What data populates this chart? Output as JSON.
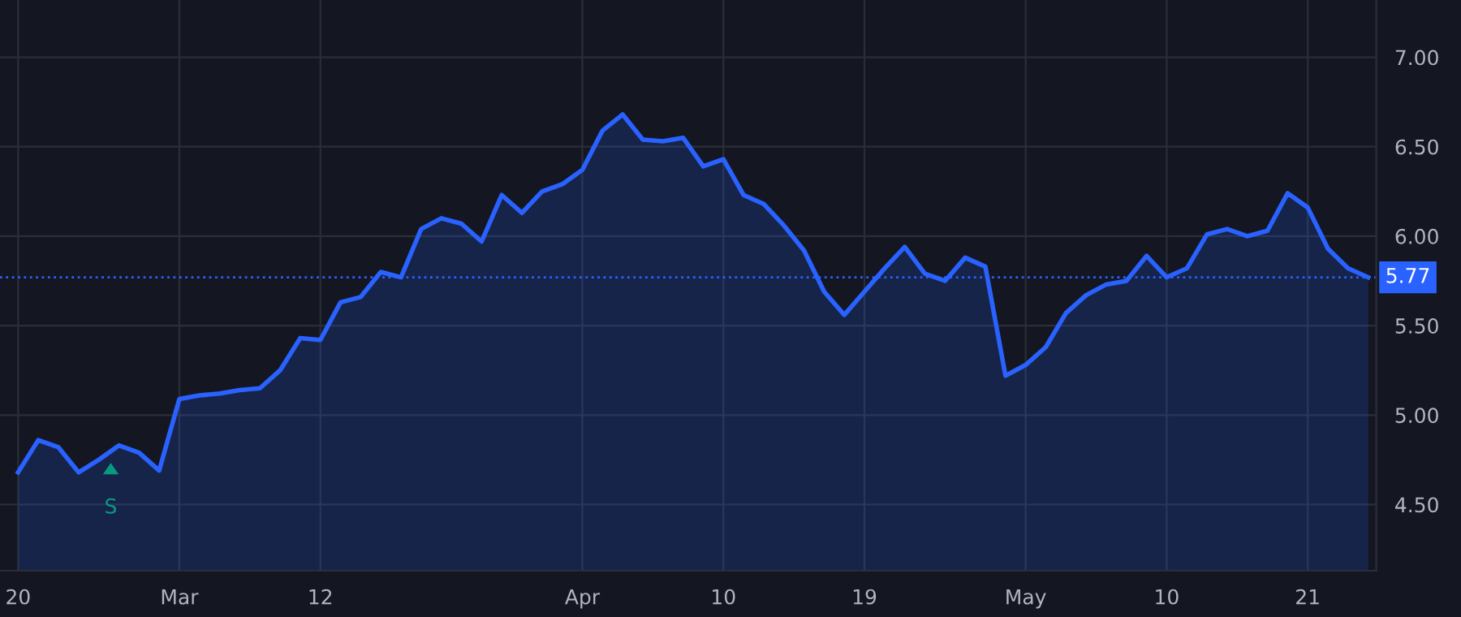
{
  "chart_data": {
    "type": "area",
    "categories": [
      "20",
      null,
      null,
      null,
      null,
      null,
      null,
      null,
      "Mar",
      null,
      null,
      null,
      null,
      null,
      null,
      "12",
      null,
      null,
      null,
      null,
      null,
      null,
      null,
      null,
      null,
      null,
      null,
      null,
      "Apr",
      null,
      null,
      null,
      null,
      null,
      null,
      "10",
      null,
      null,
      null,
      null,
      null,
      null,
      "19",
      null,
      null,
      null,
      null,
      null,
      null,
      null,
      "May",
      null,
      null,
      null,
      null,
      null,
      null,
      "10",
      null,
      null,
      null,
      null,
      null,
      null,
      "21",
      null,
      null,
      null
    ],
    "series": [
      {
        "color": "#2962ff",
        "values": [
          4.68,
          4.86,
          4.82,
          4.68,
          4.75,
          4.83,
          4.79,
          4.69,
          5.09,
          5.11,
          5.12,
          5.14,
          5.15,
          5.25,
          5.43,
          5.42,
          5.63,
          5.66,
          5.8,
          5.77,
          6.04,
          6.1,
          6.07,
          5.97,
          6.23,
          6.13,
          6.25,
          6.29,
          6.37,
          6.59,
          6.68,
          6.54,
          6.53,
          6.55,
          6.39,
          6.43,
          6.23,
          6.18,
          6.06,
          5.92,
          5.69,
          5.56,
          5.69,
          5.82,
          5.94,
          5.79,
          5.75,
          5.88,
          5.83,
          5.22,
          5.28,
          5.38,
          5.57,
          5.67,
          5.73,
          5.75,
          5.89,
          5.77,
          5.82,
          6.01,
          6.04,
          6.0,
          6.03,
          6.24,
          6.16,
          5.93,
          5.82,
          5.77
        ]
      }
    ],
    "ylim": [
      4.13,
      7.32
    ],
    "yticks": [
      {
        "value": 4.5,
        "label": "4.50"
      },
      {
        "value": 5.0,
        "label": "5.00"
      },
      {
        "value": 5.5,
        "label": "5.50"
      },
      {
        "value": 6.0,
        "label": "6.00"
      },
      {
        "value": 6.5,
        "label": "6.50"
      },
      {
        "value": 7.0,
        "label": "7.00"
      }
    ],
    "ref_lines": [
      {
        "axis": "y",
        "value": 5.77,
        "label": "5.77",
        "color": "#2962ff",
        "line_style": "dotted"
      }
    ],
    "annotations": [
      {
        "text": "S",
        "y": 4.83
      }
    ],
    "grid": true,
    "marker": "none",
    "line_style": "solid"
  }
}
